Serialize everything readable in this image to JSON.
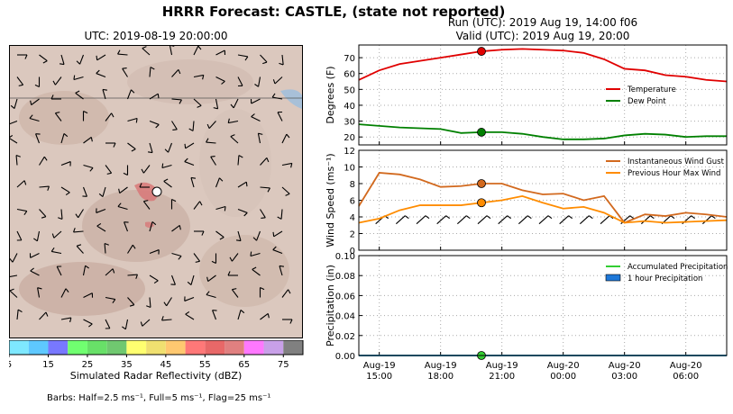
{
  "title": "HRRR Forecast: CASTLE, (state not reported)",
  "map": {
    "time_label": "UTC: 2019-08-19 20:00:00",
    "colorbar": {
      "label": "Simulated Radar Reflectivity (dBZ)",
      "ticks": [
        "5",
        "15",
        "25",
        "35",
        "45",
        "55",
        "65",
        "75"
      ],
      "colors": [
        "#7ee8ff",
        "#5ec8ff",
        "#7878ff",
        "#70ff70",
        "#68e068",
        "#70c870",
        "#ffff70",
        "#f0e070",
        "#ffc870",
        "#ff7878",
        "#e86868",
        "#e08080",
        "#ff78ff",
        "#c8a0e8",
        "#808080"
      ]
    },
    "barbs_note": "Barbs: Half=2.5 ms⁻¹, Full=5 ms⁻¹, Flag=25 ms⁻¹"
  },
  "run_label": "Run (UTC): 2019 Aug 19, 14:00 f06",
  "valid_label": "Valid (UTC): 2019 Aug 19, 20:00",
  "chart_data": [
    {
      "type": "line",
      "ylabel": "Degrees (F)",
      "ylim": [
        15,
        78
      ],
      "yticks": [
        20,
        30,
        40,
        50,
        60,
        70
      ],
      "x": [
        0,
        1,
        2,
        3,
        4,
        5,
        6,
        7,
        8,
        9,
        10,
        11,
        12,
        13,
        14,
        15,
        16,
        17,
        18
      ],
      "series": [
        {
          "name": "Temperature",
          "color": "#e00000",
          "values": [
            56,
            62,
            66,
            68,
            70,
            72,
            74,
            75,
            75.5,
            75,
            74.5,
            73,
            69,
            63,
            62,
            59,
            58,
            56,
            55
          ]
        },
        {
          "name": "Dew Point",
          "color": "#008000",
          "values": [
            28,
            27,
            26,
            25.5,
            25,
            22.5,
            23,
            23,
            22,
            20,
            18.5,
            18.5,
            19,
            21,
            22,
            21.5,
            20,
            20.5,
            20.5
          ]
        }
      ],
      "markers": [
        {
          "series": "Temperature",
          "x": 6,
          "y": 74
        },
        {
          "series": "Dew Point",
          "x": 6,
          "y": 23
        }
      ],
      "legend": "center-right",
      "grid": true
    },
    {
      "type": "line",
      "ylabel": "Wind Speed (ms⁻¹)",
      "ylim": [
        0,
        12
      ],
      "yticks": [
        0,
        2,
        4,
        6,
        8,
        10,
        12
      ],
      "x": [
        0,
        1,
        2,
        3,
        4,
        5,
        6,
        7,
        8,
        9,
        10,
        11,
        12,
        13,
        14,
        15,
        16,
        17,
        18
      ],
      "series": [
        {
          "name": "Instantaneous Wind Gust",
          "color": "#d2691e",
          "values": [
            5.3,
            9.3,
            9.1,
            8.5,
            7.6,
            7.7,
            8.0,
            8.0,
            7.2,
            6.7,
            6.8,
            6.0,
            6.5,
            3.3,
            4.3,
            4.1,
            4.5,
            4.3,
            4.0
          ]
        },
        {
          "name": "Previous Hour Max Wind",
          "color": "#ff8c00",
          "values": [
            3.3,
            3.8,
            4.8,
            5.4,
            5.4,
            5.4,
            5.7,
            6.0,
            6.5,
            5.7,
            5.0,
            5.2,
            4.5,
            3.3,
            3.5,
            3.3,
            3.4,
            3.5,
            3.6
          ]
        }
      ],
      "markers": [
        {
          "series": "Instantaneous Wind Gust",
          "x": 6,
          "y": 8.0
        },
        {
          "series": "Previous Hour Max Wind",
          "x": 6,
          "y": 5.7
        }
      ],
      "legend": "top-right",
      "grid": true
    },
    {
      "type": "line",
      "ylabel": "Precipitation (in)",
      "ylim": [
        0,
        0.1
      ],
      "yticks": [
        "0.00",
        "0.02",
        "0.04",
        "0.06",
        "0.08",
        "0.10"
      ],
      "x_ticks": [
        {
          "x": 1,
          "line1": "Aug-19",
          "line2": "15:00"
        },
        {
          "x": 4,
          "line1": "Aug-19",
          "line2": "18:00"
        },
        {
          "x": 7,
          "line1": "Aug-19",
          "line2": "21:00"
        },
        {
          "x": 10,
          "line1": "Aug-20",
          "line2": "00:00"
        },
        {
          "x": 13,
          "line1": "Aug-20",
          "line2": "03:00"
        },
        {
          "x": 16,
          "line1": "Aug-20",
          "line2": "06:00"
        }
      ],
      "series": [
        {
          "name": "Accumulated Precipitation",
          "color": "#32cd32",
          "values": [
            0,
            0,
            0,
            0,
            0,
            0,
            0,
            0,
            0,
            0,
            0,
            0,
            0,
            0,
            0,
            0,
            0,
            0,
            0
          ]
        },
        {
          "name": "1 hour Precipitation",
          "color": "#1e78d8",
          "values": [
            0,
            0,
            0,
            0,
            0,
            0,
            0,
            0,
            0,
            0,
            0,
            0,
            0,
            0,
            0,
            0,
            0,
            0,
            0
          ]
        }
      ],
      "markers": [
        {
          "series": "Accumulated Precipitation",
          "x": 6,
          "y": 0
        }
      ],
      "legend": "top-right",
      "grid": true
    }
  ]
}
